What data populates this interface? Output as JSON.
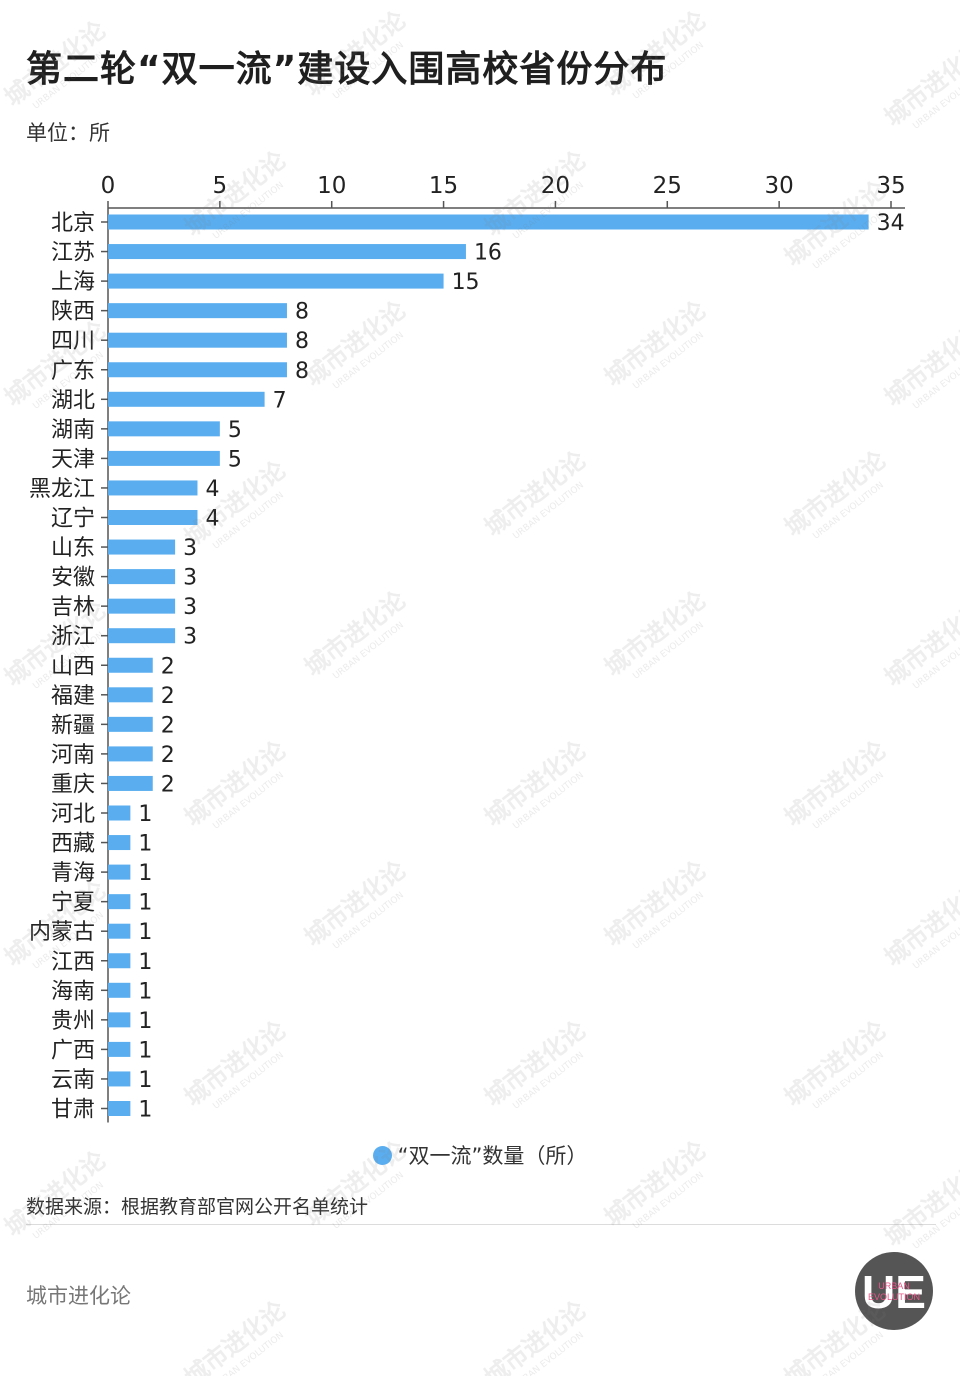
{
  "title": "第二轮“双一流”建设入围高校省份分布",
  "unit": "单位：所",
  "legend_label": "“双一流”数量（所）",
  "source": "数据来源：根据教育部官网公开名单统计",
  "brand": "城市进化论",
  "watermark": {
    "main": "城市进化论",
    "sub": "URBAN EVOLUTION"
  },
  "logo": {
    "letters": "UE",
    "text_line1": "URBAN",
    "text_line2": "EVOLUTION"
  },
  "colors": {
    "bar": "#5aaef0",
    "axis": "#555555",
    "text": "#222222",
    "logo_bg": "#555555",
    "logo_accent": "#e8578a"
  },
  "chart_data": {
    "type": "bar",
    "orientation": "horizontal",
    "title": "第二轮“双一流”建设入围高校省份分布",
    "xlim": [
      0,
      35
    ],
    "x_ticks": [
      0,
      5,
      10,
      15,
      20,
      25,
      30,
      35
    ],
    "x_axis_position": "top",
    "grid": false,
    "legend_position": "bottom-center",
    "categories": [
      "北京",
      "江苏",
      "上海",
      "陕西",
      "四川",
      "广东",
      "湖北",
      "湖南",
      "天津",
      "黑龙江",
      "辽宁",
      "山东",
      "安徽",
      "吉林",
      "浙江",
      "山西",
      "福建",
      "新疆",
      "河南",
      "重庆",
      "河北",
      "西藏",
      "青海",
      "宁夏",
      "内蒙古",
      "江西",
      "海南",
      "贵州",
      "广西",
      "云南",
      "甘肃"
    ],
    "series": [
      {
        "name": "“双一流”数量（所）",
        "values": [
          34,
          16,
          15,
          8,
          8,
          8,
          7,
          5,
          5,
          4,
          4,
          3,
          3,
          3,
          3,
          2,
          2,
          2,
          2,
          2,
          1,
          1,
          1,
          1,
          1,
          1,
          1,
          1,
          1,
          1,
          1
        ]
      }
    ]
  }
}
